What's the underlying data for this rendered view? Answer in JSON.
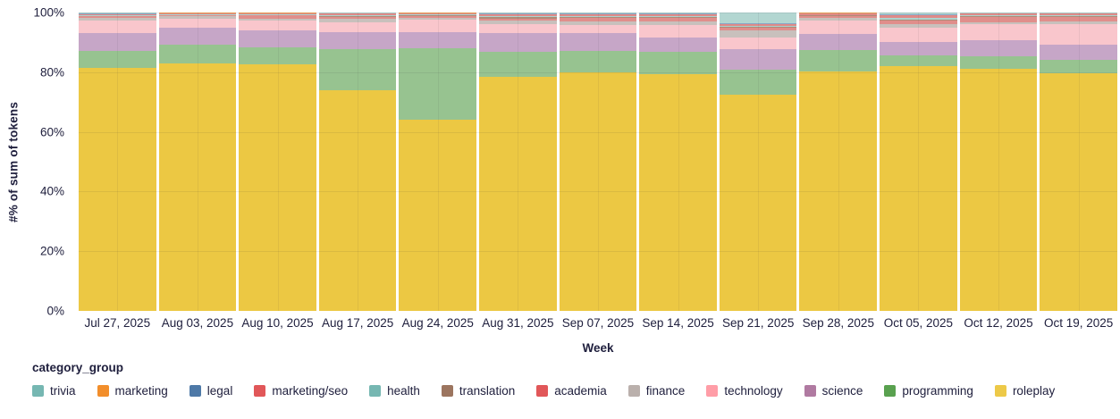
{
  "page": {
    "background": "#ffffff",
    "text_color": "#20203e"
  },
  "chart_data": {
    "type": "bar",
    "variant": "100-percent-stacked-vertical",
    "title": "",
    "xlabel": "Week",
    "ylabel": "#% of sum of tokens",
    "legend_title": "category_group",
    "legend_position": "bottom-left",
    "ylim": [
      0,
      100
    ],
    "y_tick_values": [
      0,
      20,
      40,
      60,
      80,
      100
    ],
    "y_tick_labels": [
      "0%",
      "20%",
      "40%",
      "60%",
      "80%",
      "100%"
    ],
    "grid": "subtle horizontal lines at 20% steps and vertical line at each bar center",
    "categories": [
      "Jul 27, 2025",
      "Aug 03, 2025",
      "Aug 10, 2025",
      "Aug 17, 2025",
      "Aug 24, 2025",
      "Aug 31, 2025",
      "Sep 07, 2025",
      "Sep 14, 2025",
      "Sep 21, 2025",
      "Sep 28, 2025",
      "Oct 05, 2025",
      "Oct 12, 2025",
      "Oct 19, 2025"
    ],
    "stack_note": "series listed bottom-to-top; values are % of sum of tokens per week",
    "series": [
      {
        "name": "roleplay",
        "bar_color": "#ecc843",
        "legend_color": "#edc948",
        "values": [
          81.5,
          83.0,
          82.5,
          74.0,
          64.0,
          78.5,
          80.0,
          79.3,
          72.5,
          80.3,
          82.0,
          81.0,
          79.5
        ]
      },
      {
        "name": "programming",
        "bar_color": "#97c390",
        "legend_color": "#59a14f",
        "values": [
          5.7,
          6.2,
          5.8,
          13.6,
          24.0,
          8.2,
          7.2,
          7.6,
          8.3,
          7.0,
          3.5,
          4.4,
          4.5
        ]
      },
      {
        "name": "science",
        "bar_color": "#c6a6c7",
        "legend_color": "#b07aa1",
        "values": [
          5.8,
          5.6,
          5.8,
          5.7,
          5.5,
          6.3,
          6.0,
          4.8,
          6.9,
          5.6,
          4.7,
          5.3,
          5.2
        ]
      },
      {
        "name": "technology",
        "bar_color": "#f9c6cc",
        "legend_color": "#ff9da7",
        "values": [
          4.3,
          3.2,
          3.2,
          3.3,
          4.0,
          3.2,
          2.5,
          4.2,
          3.9,
          4.4,
          4.8,
          5.3,
          7.0
        ]
      },
      {
        "name": "finance",
        "bar_color": "#c8c0bc",
        "legend_color": "#bab0ac",
        "values": [
          1.0,
          0.7,
          0.7,
          1.2,
          0.8,
          1.0,
          1.2,
          1.2,
          2.5,
          0.8,
          1.2,
          0.8,
          0.9
        ]
      },
      {
        "name": "academia",
        "bar_color": "#e08e8b",
        "legend_color": "#e15759",
        "values": [
          0.5,
          0.4,
          1.0,
          0.8,
          0.6,
          0.8,
          1.2,
          1.2,
          0.8,
          0.7,
          1.0,
          1.6,
          1.5
        ]
      },
      {
        "name": "translation",
        "bar_color": "#ae8b77",
        "legend_color": "#9c755f",
        "values": [
          0.1,
          0.1,
          0.1,
          0.2,
          0.2,
          0.5,
          0.4,
          0.3,
          0.3,
          0.2,
          0.3,
          0.3,
          0.3
        ]
      },
      {
        "name": "health",
        "bar_color": "#add3ce",
        "legend_color": "#76b7b2",
        "values": [
          0.3,
          0.2,
          0.2,
          0.3,
          0.2,
          0.3,
          0.3,
          0.3,
          0.3,
          0.2,
          0.8,
          0.3,
          0.2
        ]
      },
      {
        "name": "marketing/seo",
        "bar_color": "#df8a88",
        "legend_color": "#e15759",
        "values": [
          0.3,
          0.3,
          0.4,
          0.5,
          0.4,
          0.6,
          0.7,
          0.6,
          0.7,
          0.5,
          0.8,
          0.6,
          0.5
        ]
      },
      {
        "name": "legal",
        "bar_color": "#8aa7c5",
        "legend_color": "#4e79a7",
        "values": [
          0.1,
          0.1,
          0.1,
          0.1,
          0.1,
          0.2,
          0.2,
          0.2,
          0.2,
          0.1,
          0.2,
          0.1,
          0.1
        ]
      },
      {
        "name": "marketing",
        "bar_color": "#f4a959",
        "legend_color": "#f28e2b",
        "values": [
          0.1,
          0.1,
          0.1,
          0.1,
          0.1,
          0.2,
          0.1,
          0.1,
          0.1,
          0.1,
          0.2,
          0.1,
          0.1
        ]
      },
      {
        "name": "trivia",
        "bar_color": "#b2d6d1",
        "legend_color": "#76b7b2",
        "values": [
          0.3,
          0.1,
          0.1,
          0.2,
          0.1,
          0.2,
          0.2,
          0.2,
          3.5,
          0.1,
          0.5,
          0.2,
          0.2
        ]
      }
    ],
    "legend_order": [
      "trivia",
      "marketing",
      "legal",
      "marketing/seo",
      "health",
      "translation",
      "academia",
      "finance",
      "technology",
      "science",
      "programming",
      "roleplay"
    ]
  }
}
